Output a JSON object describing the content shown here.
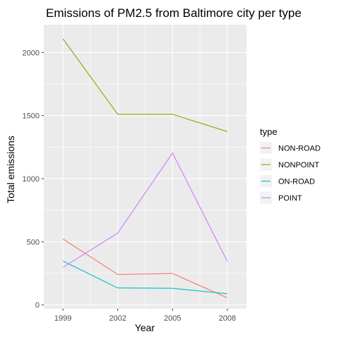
{
  "chart_data": {
    "type": "line",
    "title": "Emissions of PM2.5 from Baltimore city per type",
    "xlabel": "Year",
    "ylabel": "Total emissions",
    "x": [
      1999,
      2002,
      2005,
      2008
    ],
    "x_ticks": [
      "1999",
      "2002",
      "2005",
      "2008"
    ],
    "y_ticks": [
      0,
      500,
      1000,
      1500,
      2000
    ],
    "xlim": [
      1997.95,
      2009.05
    ],
    "ylim": [
      -30,
      2220
    ],
    "grid": true,
    "panel_background": "#ebebeb",
    "legend": {
      "title": "type",
      "placement": "right"
    },
    "series": [
      {
        "name": "NON-ROAD",
        "color": "#f8766d",
        "values": [
          522,
          241,
          249,
          55
        ]
      },
      {
        "name": "NONPOINT",
        "color": "#7cae00",
        "values": [
          2108,
          1510,
          1510,
          1373
        ]
      },
      {
        "name": "ON-ROAD",
        "color": "#00bfc4",
        "values": [
          347,
          134,
          131,
          88
        ]
      },
      {
        "name": "POINT",
        "color": "#c77cff",
        "values": [
          297,
          569,
          1203,
          345
        ]
      }
    ]
  }
}
